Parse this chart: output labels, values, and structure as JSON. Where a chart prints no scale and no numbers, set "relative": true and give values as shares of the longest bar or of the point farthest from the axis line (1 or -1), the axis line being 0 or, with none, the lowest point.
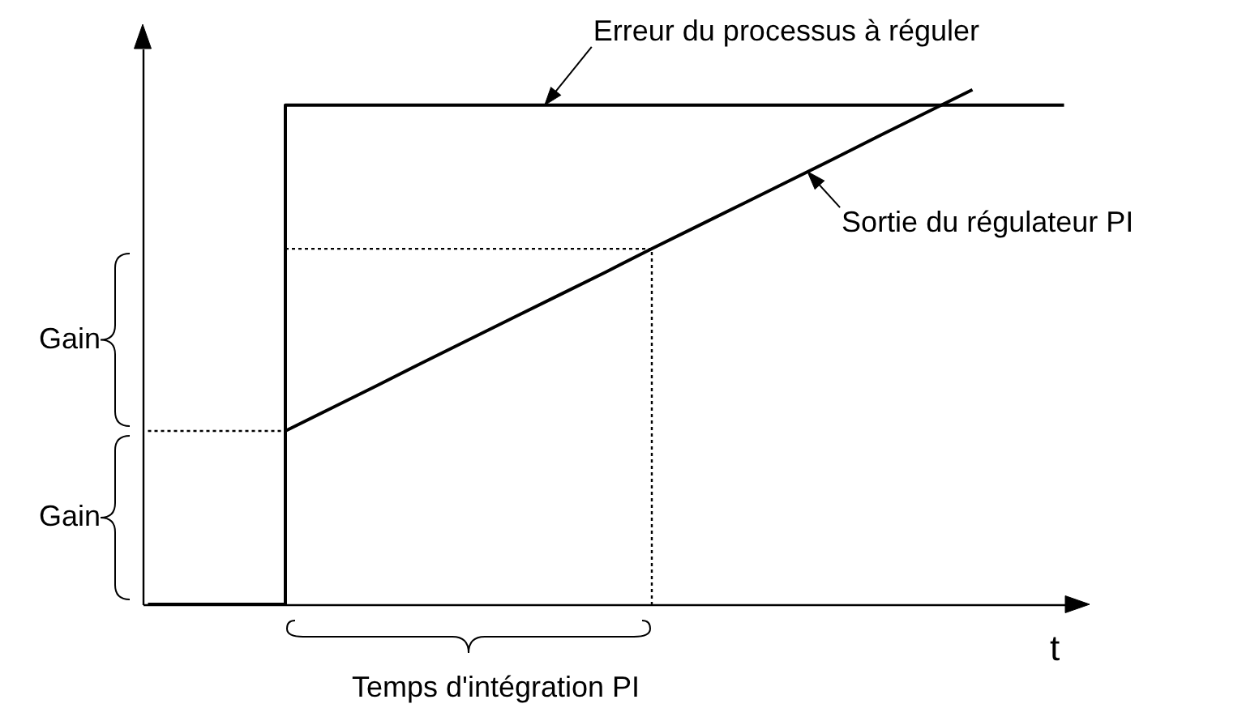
{
  "chart_data": {
    "type": "line",
    "relative": true,
    "xlabel": "t",
    "categories": [
      null,
      null,
      null,
      null,
      null,
      null,
      null,
      null,
      null,
      null,
      null,
      null,
      null,
      null,
      null,
      null,
      null,
      null,
      null,
      null,
      null
    ],
    "series": [
      {
        "name": "Erreur du processus à réguler",
        "type": "step",
        "color": "#000000",
        "values": [
          0,
          0,
          0,
          0.97,
          0.97,
          0.97,
          0.97,
          0.97,
          0.97,
          0.97,
          0.97,
          0.97,
          0.97,
          0.97,
          0.97,
          0.97,
          0.97,
          0.97,
          0.97,
          0.97,
          0.97
        ]
      },
      {
        "name": "Sortie du régulateur PI",
        "color": "#000000",
        "values": [
          null,
          null,
          null,
          0.337,
          0.381,
          0.425,
          0.47,
          0.514,
          0.558,
          0.602,
          0.646,
          0.691,
          0.735,
          0.779,
          0.823,
          0.867,
          0.912,
          0.956,
          1,
          null,
          null
        ]
      },
      {
        "color": "#000000",
        "line_style": "dotted",
        "values": [
          0.337,
          0.337,
          0.337,
          0.337,
          null,
          null,
          null,
          null,
          null,
          null,
          null,
          null,
          null,
          null,
          null,
          null,
          null,
          null,
          null,
          null,
          null
        ]
      },
      {
        "type": "step",
        "color": "#000000",
        "line_style": "dotted",
        "values": [
          null,
          null,
          null,
          0.691,
          0.691,
          0.691,
          0.691,
          0.691,
          0.691,
          0.691,
          0.691,
          0,
          null,
          null,
          null,
          null,
          null,
          null,
          null,
          null,
          null
        ]
      }
    ],
    "annotations": [
      "Gain",
      "Gain",
      "Temps d'intégration PI"
    ]
  }
}
